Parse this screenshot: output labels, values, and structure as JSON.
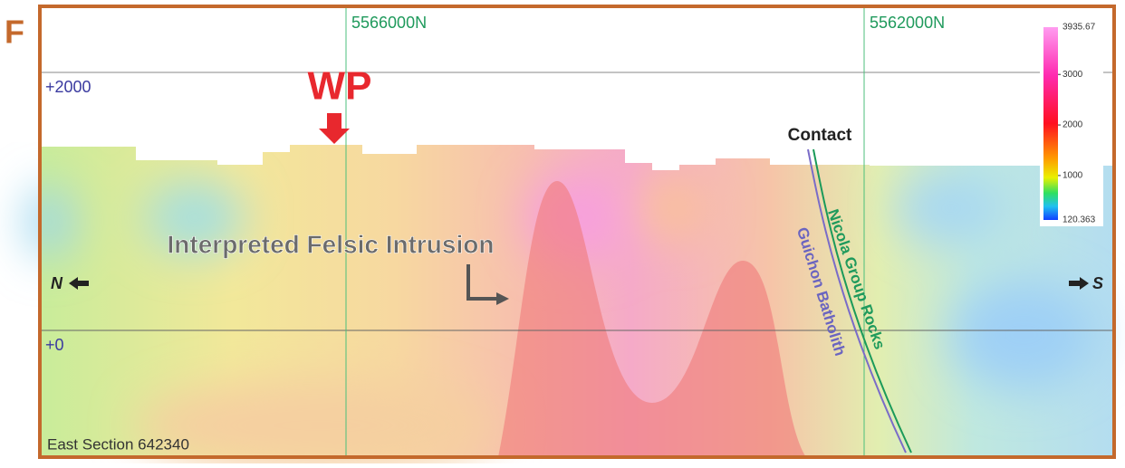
{
  "panel_label": "F",
  "grid_labels": {
    "northings": [
      "5566000N",
      "5562000N"
    ],
    "elevations": [
      "+2000",
      "+0"
    ]
  },
  "annotations": {
    "wp": "WP",
    "contact": "Contact",
    "intrusion": "Interpreted Felsic Intrusion",
    "north": "N",
    "south": "S",
    "nicola": "Nicola Group Rocks",
    "guichon": "Guichon Batholith",
    "section": "East Section 642340"
  },
  "colorbar": {
    "max": 3935.67,
    "ticks": [
      3000,
      2000,
      1000
    ],
    "min": 120.363
  }
}
